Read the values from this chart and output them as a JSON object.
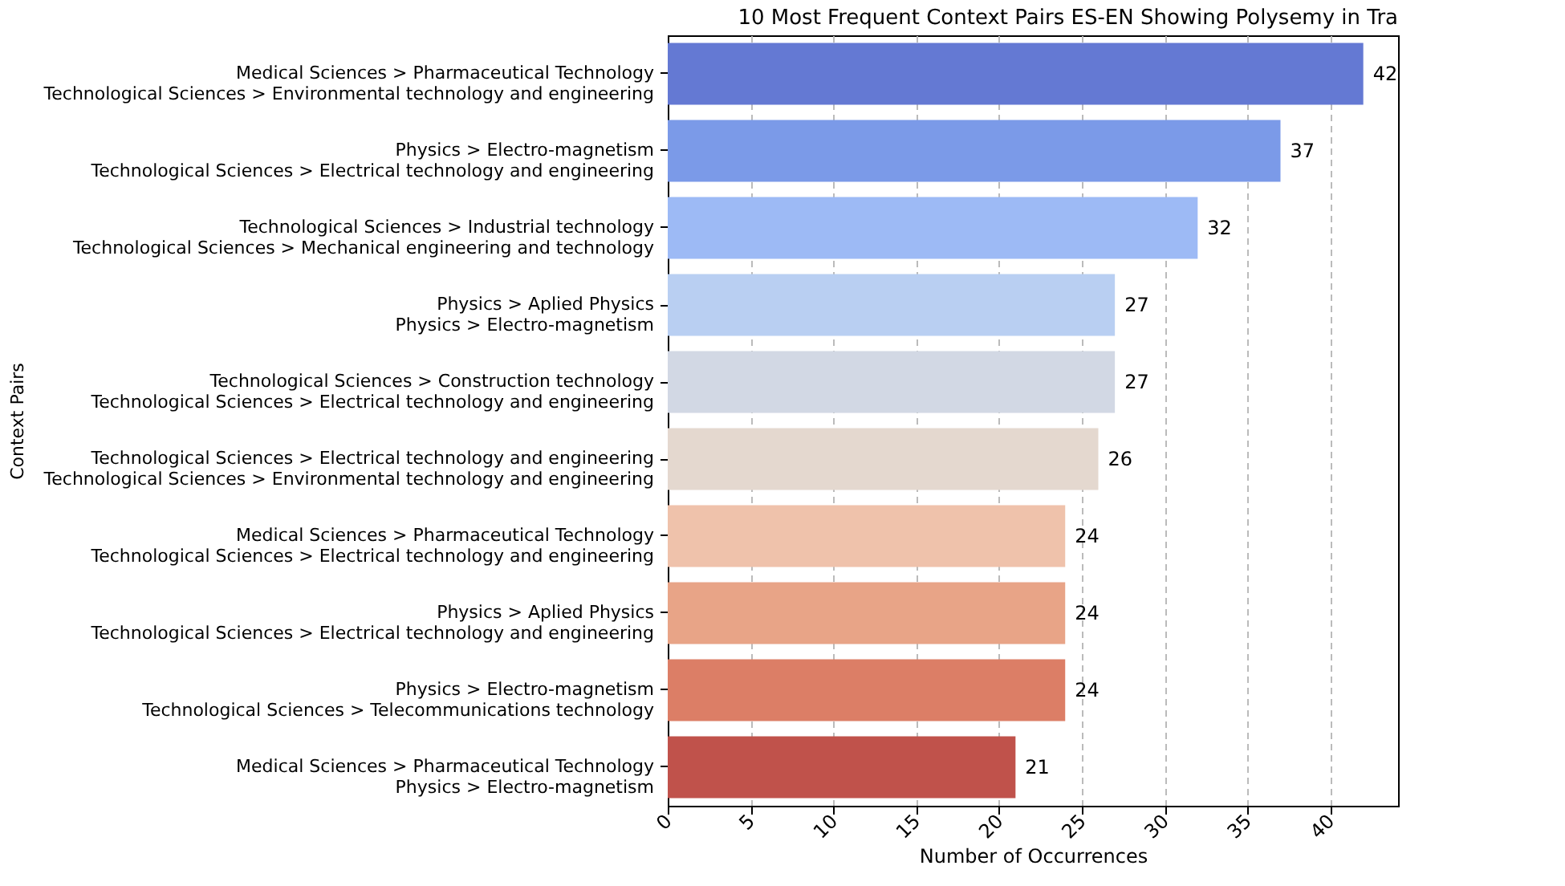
{
  "chart_data": {
    "type": "bar",
    "orientation": "horizontal",
    "title": "10 Most Frequent Context Pairs ES-EN Showing Polysemy in Tra",
    "xlabel": "Number of Occurrences",
    "ylabel": "Context Pairs",
    "categories": [
      "Medical Sciences > Pharmaceutical Technology\nTechnological Sciences > Environmental technology and engineering",
      "Physics > Electro-magnetism\nTechnological Sciences > Electrical technology and engineering",
      "Technological Sciences > Industrial technology\nTechnological Sciences > Mechanical engineering and technology",
      "Physics > Aplied Physics\nPhysics > Electro-magnetism",
      "Technological Sciences > Construction technology\nTechnological Sciences > Electrical technology and engineering",
      "Technological Sciences > Electrical technology and engineering\nTechnological Sciences > Environmental technology and engineering",
      "Medical Sciences > Pharmaceutical Technology\nTechnological Sciences > Electrical technology and engineering",
      "Physics > Aplied Physics\nTechnological Sciences > Electrical technology and engineering",
      "Physics > Electro-magnetism\nTechnological Sciences > Telecommunications technology",
      "Medical Sciences > Pharmaceutical Technology\nPhysics > Electro-magnetism"
    ],
    "values": [
      42,
      37,
      32,
      27,
      27,
      26,
      24,
      24,
      24,
      21
    ],
    "colors": [
      "#6479d3",
      "#7b9ae8",
      "#9dbaf5",
      "#b9cff2",
      "#d2d8e4",
      "#e4d8cf",
      "#efc2ab",
      "#e8a487",
      "#dc7e66",
      "#c0524b"
    ],
    "xlim": [
      0,
      44.1
    ],
    "xticks": [
      0,
      5,
      10,
      15,
      20,
      25,
      30,
      35,
      40
    ],
    "grid": "x",
    "data_labels": true
  }
}
